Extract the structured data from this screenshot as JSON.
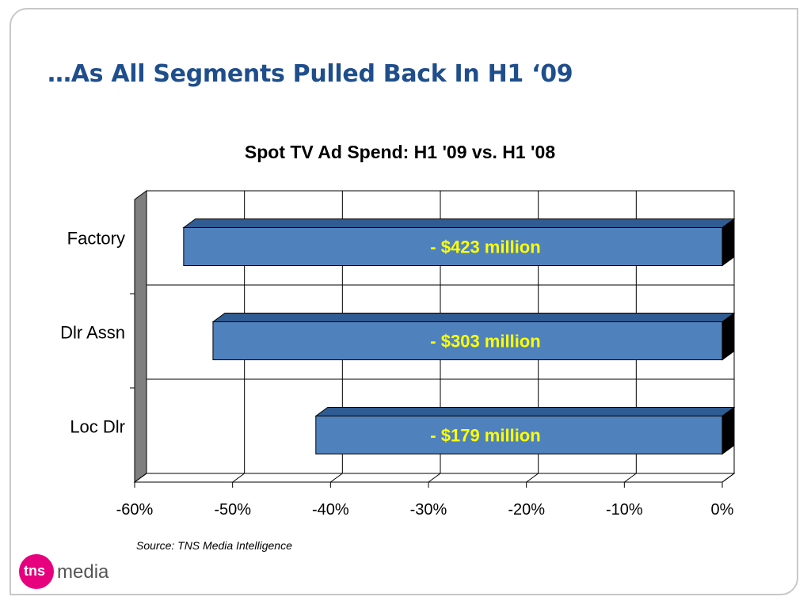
{
  "slide": {
    "title": "…As All Segments Pulled Back In H1 ‘09",
    "source_note": "Source: TNS Media Intelligence",
    "logo": {
      "badge_text": "tns",
      "word": "media",
      "brand_color": "#e6007e"
    }
  },
  "colors": {
    "title_text": "#1f4e8c",
    "bar_fill": "#4f81bd",
    "bar_top": "#2f5c92",
    "bar_side": "#000000",
    "bar_label": "#ffff00",
    "wall": "#7f7f7f",
    "grid": "#000000"
  },
  "chart_data": {
    "type": "bar",
    "orientation": "horizontal",
    "style": "3d",
    "title": "Spot TV Ad Spend: H1 '09 vs. H1 '08",
    "categories": [
      "Factory",
      "Dlr Assn",
      "Loc Dlr"
    ],
    "values": [
      -55,
      -52,
      -41.5
    ],
    "data_labels": [
      "- $423 million",
      "- $303 million",
      "- $179 million"
    ],
    "xlim": [
      -60,
      0
    ],
    "x_ticks": [
      -60,
      -50,
      -40,
      -30,
      -20,
      -10,
      0
    ],
    "x_tick_labels": [
      "-60%",
      "-50%",
      "-40%",
      "-30%",
      "-20%",
      "-10%",
      "0%"
    ],
    "grid": true,
    "legend": "none"
  }
}
